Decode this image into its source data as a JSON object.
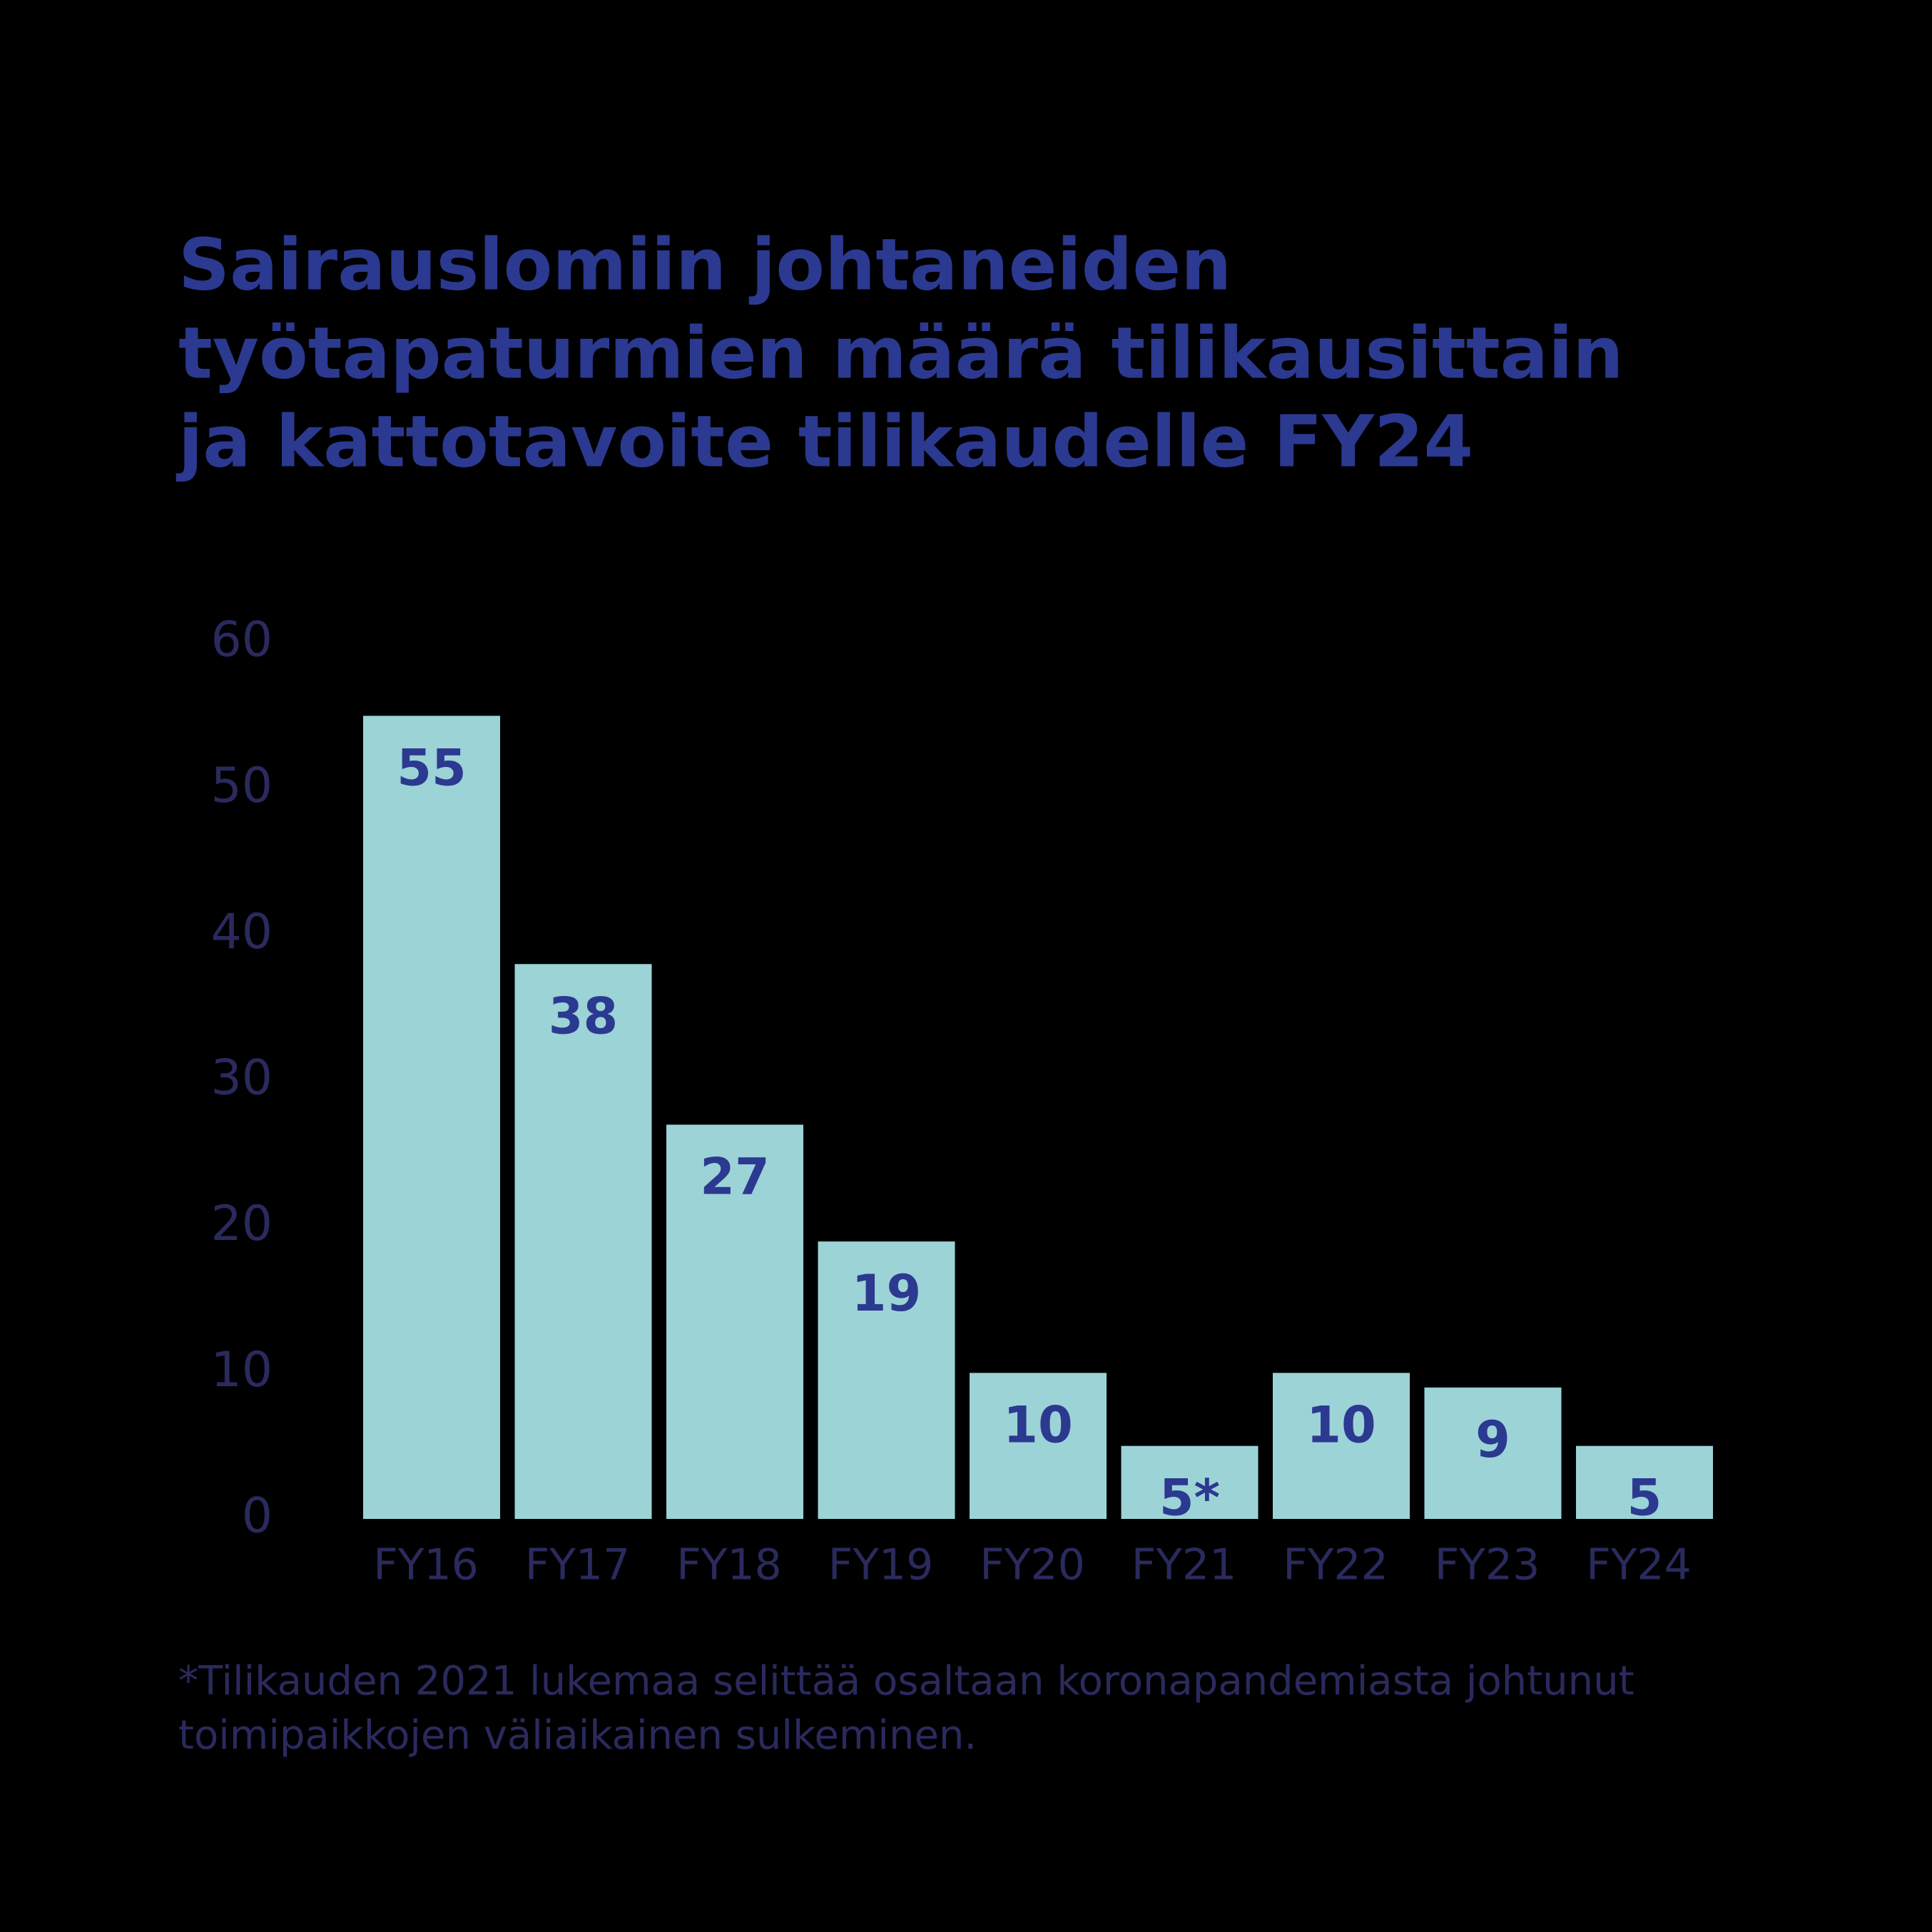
{
  "chart_data": {
    "type": "bar",
    "title": [
      "Sairauslomiin johtaneiden",
      "työtapaturmien määrä tilikausittain",
      "ja kattotavoite tilikaudelle FY24"
    ],
    "categories": [
      "FY16",
      "FY17",
      "FY18",
      "FY19",
      "FY20",
      "FY21",
      "FY22",
      "FY23",
      "FY24"
    ],
    "values": [
      55,
      38,
      27,
      19,
      10,
      5,
      10,
      9,
      5
    ],
    "value_labels": [
      "55",
      "38",
      "27",
      "19",
      "10",
      "5*",
      "10",
      "9",
      "5"
    ],
    "color": "#9cd3d6",
    "ylim": [
      0,
      60
    ],
    "yticks": [
      0,
      10,
      20,
      30,
      40,
      50,
      60
    ],
    "grid": false,
    "footnote": [
      "*Tilikauden 2021 lukemaa selittää osaltaan koronapandemiasta johtunut",
      "toimipaikkojen väliaikainen sulkeminen."
    ]
  }
}
